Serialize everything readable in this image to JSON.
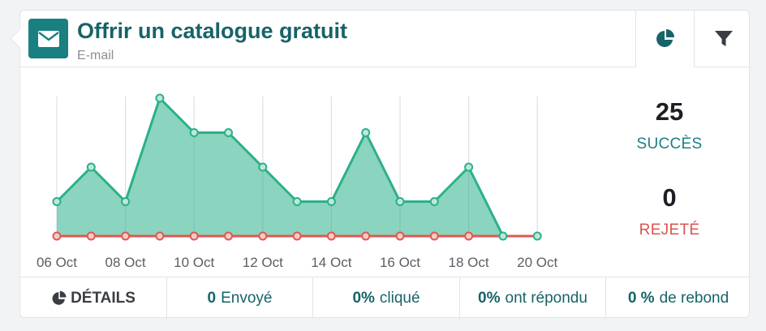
{
  "header": {
    "title": "Offrir un catalogue gratuit",
    "subtitle": "E-mail"
  },
  "stats": {
    "success_value": "25",
    "success_label": "SUCCÈS",
    "rejected_value": "0",
    "rejected_label": "REJETÉ"
  },
  "footer": {
    "details_label": "DÉTAILS",
    "sent_value": "0",
    "sent_label": "Envoyé",
    "clicked_value": "0%",
    "clicked_label": "cliqué",
    "replied_value": "0%",
    "replied_label": "ont répondu",
    "bounce_value": "0 %",
    "bounce_label": "de rebond"
  },
  "colors": {
    "teal_dark": "#176368",
    "success_series": "#2bb08a",
    "rejected_series": "#db5a52"
  },
  "chart_data": {
    "type": "area",
    "x": [
      "06 Oct",
      "07 Oct",
      "08 Oct",
      "09 Oct",
      "10 Oct",
      "11 Oct",
      "12 Oct",
      "13 Oct",
      "14 Oct",
      "15 Oct",
      "16 Oct",
      "17 Oct",
      "18 Oct",
      "19 Oct",
      "20 Oct"
    ],
    "tick_labels": [
      "06 Oct",
      "08 Oct",
      "10 Oct",
      "12 Oct",
      "14 Oct",
      "16 Oct",
      "18 Oct",
      "20 Oct"
    ],
    "series": [
      {
        "values": [
          1,
          2,
          1,
          4,
          3,
          3,
          2,
          1,
          1,
          3,
          1,
          1,
          2,
          0,
          0
        ],
        "color": "#2bb08a"
      },
      {
        "values": [
          0,
          0,
          0,
          0,
          0,
          0,
          0,
          0,
          0,
          0,
          0,
          0,
          0,
          0,
          0
        ],
        "color": "#db5a52"
      }
    ],
    "ylim": [
      0,
      4
    ],
    "grid": "vertical"
  }
}
